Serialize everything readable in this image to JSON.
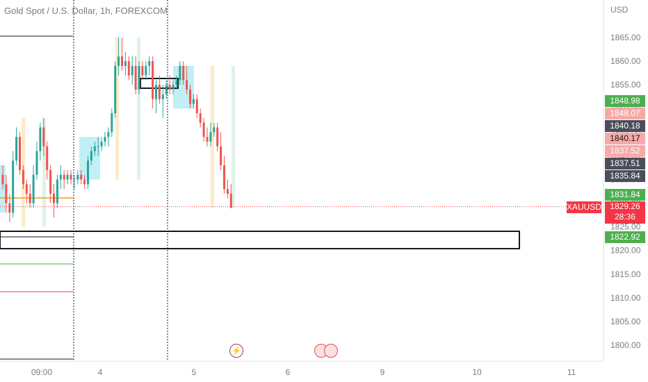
{
  "title": "Gold Spot / U.S. Dollar, 1h, FOREXCOM",
  "chart_data": {
    "type": "candlestick",
    "symbol": "XAUUSD",
    "currency": "USD",
    "y_ticks": [
      "1865.00",
      "1860.00",
      "1855.00",
      "1850.00",
      "1845.00",
      "1840.00",
      "1835.00",
      "1830.00",
      "1825.00",
      "1820.00",
      "1815.00",
      "1810.00",
      "1805.00",
      "1800.00"
    ],
    "x_ticks": [
      "09:00",
      "4",
      "5",
      "6",
      "9",
      "10",
      "11"
    ],
    "ylim": [
      1798,
      1869
    ],
    "candles": [
      [
        1836,
        1838,
        1833,
        1834
      ],
      [
        1834,
        1836,
        1828,
        1830
      ],
      [
        1830,
        1832,
        1826,
        1828
      ],
      [
        1828,
        1841,
        1827,
        1839
      ],
      [
        1839,
        1846,
        1838,
        1844
      ],
      [
        1844,
        1845,
        1836,
        1837
      ],
      [
        1837,
        1838,
        1833,
        1834
      ],
      [
        1834,
        1835,
        1830,
        1832
      ],
      [
        1832,
        1834,
        1829,
        1830
      ],
      [
        1830,
        1838,
        1829,
        1836
      ],
      [
        1836,
        1843,
        1835,
        1841
      ],
      [
        1841,
        1847,
        1839,
        1846
      ],
      [
        1846,
        1848,
        1840,
        1842
      ],
      [
        1842,
        1843,
        1835,
        1837
      ],
      [
        1837,
        1838,
        1830,
        1832
      ],
      [
        1832,
        1834,
        1827,
        1830
      ],
      [
        1830,
        1836,
        1829,
        1835
      ],
      [
        1835,
        1838,
        1833,
        1836
      ],
      [
        1836,
        1837,
        1833,
        1835
      ],
      [
        1835,
        1837,
        1834,
        1836
      ],
      [
        1836,
        1837,
        1834,
        1835
      ],
      [
        1835,
        1836,
        1833,
        1835
      ],
      [
        1835,
        1837,
        1834,
        1836
      ],
      [
        1836,
        1837,
        1834,
        1835
      ],
      [
        1835,
        1836,
        1833,
        1834
      ],
      [
        1834,
        1840,
        1833,
        1839
      ],
      [
        1839,
        1842,
        1838,
        1841
      ],
      [
        1841,
        1843,
        1840,
        1842
      ],
      [
        1842,
        1844,
        1840,
        1842
      ],
      [
        1842,
        1844,
        1841,
        1843
      ],
      [
        1843,
        1845,
        1842,
        1844
      ],
      [
        1844,
        1846,
        1842,
        1845
      ],
      [
        1845,
        1850,
        1844,
        1849
      ],
      [
        1849,
        1860,
        1848,
        1859
      ],
      [
        1859,
        1865,
        1857,
        1861
      ],
      [
        1861,
        1865,
        1858,
        1859
      ],
      [
        1859,
        1862,
        1857,
        1860
      ],
      [
        1860,
        1861,
        1856,
        1857
      ],
      [
        1857,
        1861,
        1855,
        1859
      ],
      [
        1859,
        1861,
        1853,
        1854
      ],
      [
        1854,
        1860,
        1853,
        1859
      ],
      [
        1859,
        1860,
        1856,
        1857
      ],
      [
        1857,
        1860,
        1856,
        1859
      ],
      [
        1859,
        1861,
        1857,
        1860
      ],
      [
        1860,
        1861,
        1850,
        1852
      ],
      [
        1852,
        1856,
        1849,
        1855
      ],
      [
        1855,
        1857,
        1851,
        1852
      ],
      [
        1852,
        1855,
        1848,
        1853
      ],
      [
        1853,
        1856,
        1852,
        1855
      ],
      [
        1855,
        1857,
        1853,
        1854
      ],
      [
        1854,
        1856,
        1853,
        1855
      ],
      [
        1855,
        1857,
        1854,
        1856
      ],
      [
        1856,
        1860,
        1855,
        1859
      ],
      [
        1859,
        1860,
        1855,
        1856
      ],
      [
        1856,
        1859,
        1853,
        1854
      ],
      [
        1854,
        1855,
        1850,
        1851
      ],
      [
        1851,
        1853,
        1850,
        1852
      ],
      [
        1852,
        1853,
        1848,
        1849
      ],
      [
        1849,
        1850,
        1846,
        1847
      ],
      [
        1847,
        1848,
        1843,
        1844
      ],
      [
        1844,
        1846,
        1842,
        1843
      ],
      [
        1843,
        1847,
        1842,
        1845
      ],
      [
        1845,
        1847,
        1844,
        1846
      ],
      [
        1846,
        1847,
        1841,
        1842
      ],
      [
        1842,
        1845,
        1837,
        1838
      ],
      [
        1838,
        1840,
        1832,
        1833
      ],
      [
        1833,
        1835,
        1831,
        1832
      ],
      [
        1832,
        1834,
        1829,
        1829
      ]
    ],
    "price_labels": [
      {
        "value": 1848.98,
        "text": "1848.98",
        "bg": "#4caf50",
        "fg": "#ffffff"
      },
      {
        "value": 1848.07,
        "text": "1848.07",
        "bg": "#f7a9a8",
        "fg": "#ffffff"
      },
      {
        "value": 1840.18,
        "text": "1840.18",
        "bg": "#4a4e5a",
        "fg": "#ffffff"
      },
      {
        "value": 1840.17,
        "text": "1840.17",
        "bg": "#f7a9a8",
        "fg": "#131722"
      },
      {
        "value": 1837.52,
        "text": "1837.52",
        "bg": "#f7a9a8",
        "fg": "#ffffff"
      },
      {
        "value": 1837.51,
        "text": "1837.51",
        "bg": "#4a4e5a",
        "fg": "#ffffff"
      },
      {
        "value": 1835.84,
        "text": "1835.84",
        "bg": "#4a4e5a",
        "fg": "#ffffff"
      },
      {
        "value": 1831.84,
        "text": "1831.84",
        "bg": "#4caf50",
        "fg": "#ffffff"
      },
      {
        "value": 1822.92,
        "text": "1822.92",
        "bg": "#4caf50",
        "fg": "#ffffff"
      }
    ],
    "last_price": "1829.26",
    "countdown": "28:36",
    "colors": {
      "up": "#26a69a",
      "down": "#ef5350",
      "live": "#f23645"
    }
  }
}
